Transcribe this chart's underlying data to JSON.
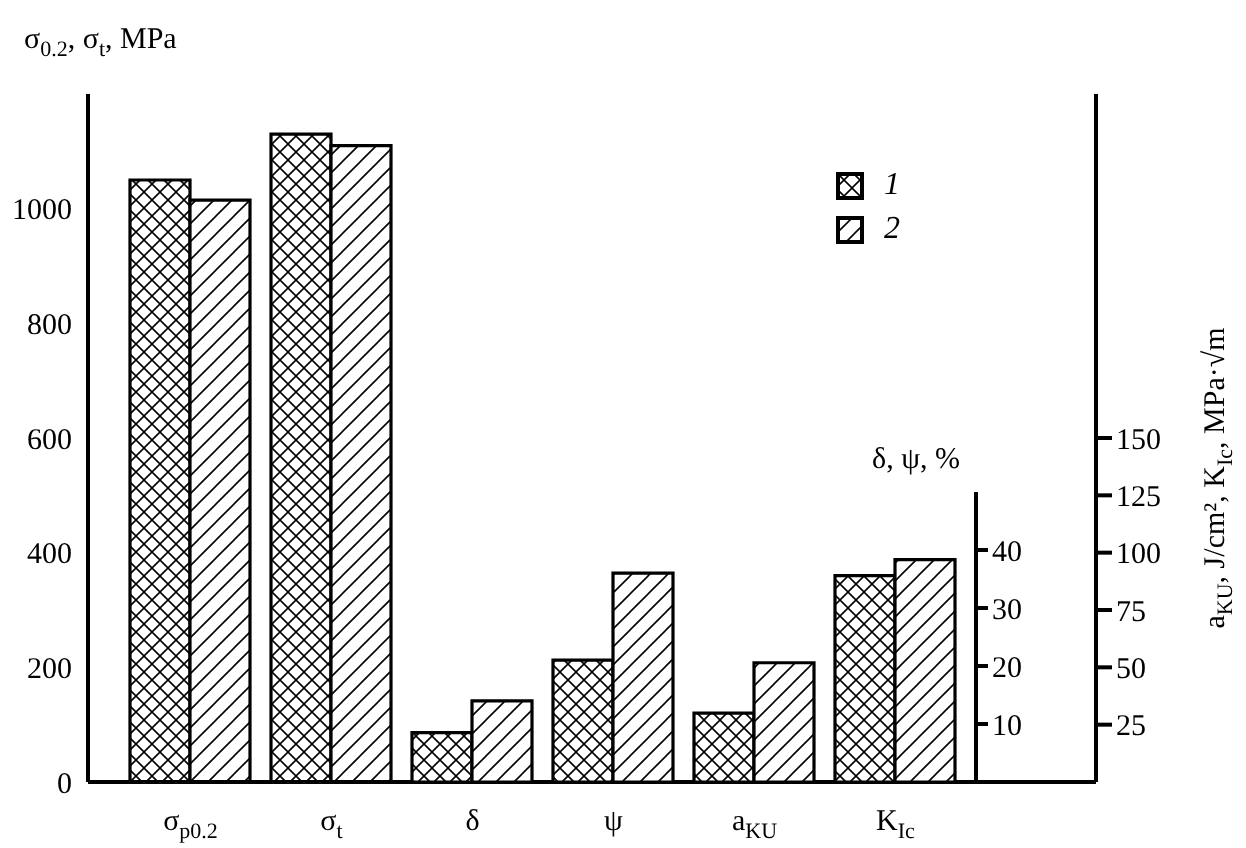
{
  "chart_data": {
    "type": "bar",
    "ylabel": "σ$_{0.2}$, σ$_{t}$, MPa",
    "y2label": "δ, ψ, %",
    "y3label": "a$_{KU}$, J/cm², K$_{Ic}$, MPa·√m",
    "categories": [
      "σ$_{p0.2}$",
      "σ$_{t}$",
      "δ",
      "ψ",
      "a$_{KU}$",
      "K$_{Ic}$"
    ],
    "series": [
      {
        "name": "1",
        "color": "#000000",
        "values": [
          1050,
          1130,
          null,
          null,
          null,
          null
        ]
      },
      {
        "name": "2",
        "color": "#000000",
        "values": [
          1015,
          1110,
          null,
          null,
          null,
          null
        ]
      },
      {
        "color": "#000000",
        "axis": "y2",
        "values": [
          null,
          null,
          8.5,
          21,
          null,
          null
        ]
      },
      {
        "color": "#000000",
        "axis": "y2",
        "values": [
          null,
          null,
          14,
          36,
          null,
          null
        ]
      },
      {
        "color": "#000000",
        "axis": "y3",
        "values": [
          null,
          null,
          null,
          null,
          30,
          90
        ]
      },
      {
        "color": "#000000",
        "axis": "y3",
        "values": [
          null,
          null,
          null,
          null,
          52,
          97
        ]
      }
    ],
    "ylim": [
      0,
      1200
    ],
    "yticks": [
      0,
      200,
      400,
      600,
      800,
      1000
    ],
    "y2lim": [
      0,
      50
    ],
    "y2ticks": [
      10,
      20,
      30,
      40
    ],
    "y3lim": [
      0,
      300
    ],
    "y3ticks": [
      25,
      50,
      75,
      100,
      125,
      150
    ],
    "legend": "top right"
  }
}
